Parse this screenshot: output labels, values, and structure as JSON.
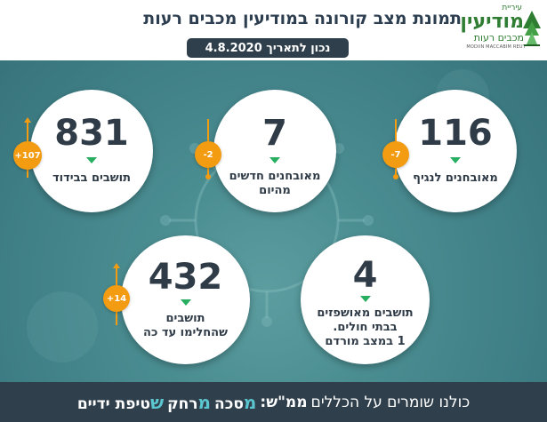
{
  "header": {
    "title": "תמונת מצב קורונה במודיעין מכבים רעות",
    "date": "נכון לתאריך 4.8.2020"
  },
  "logo": {
    "small": "עיריית",
    "main": "מודיעין",
    "sub": "מכבים רעות",
    "english": "MODIIN MACCABIM REUT"
  },
  "stats": {
    "isolation": {
      "value": "831",
      "label": "תושבים בבידוד",
      "change": "+107"
    },
    "new_cases": {
      "value": "7",
      "label_line1": "מאובחנים חדשים",
      "label_line2": "מהיום",
      "change": "-2"
    },
    "active": {
      "value": "116",
      "label": "מאובחנים לנגיף",
      "change": "-7"
    },
    "recovered": {
      "value": "432",
      "label_line1": "תושבים",
      "label_line2": "שהחלימו עד כה",
      "change": "+14"
    },
    "hospitalized": {
      "value": "4",
      "label_line1": "תושבים מאושפזים",
      "label_line2": "בבתי חולים.",
      "label_line3": "1 במצב מורדם"
    }
  },
  "footer": {
    "intro": "כולנו שומרים על הכללים",
    "acronym": "ממ\"ש:",
    "m1": "מ",
    "w1": "סכה",
    "m2": "מ",
    "w2": "רחק",
    "s": "ש",
    "w3": "טיפת ידיים"
  },
  "colors": {
    "accent_green": "#27ae60",
    "badge_orange": "#f39c12",
    "dark_navy": "#2f3f4c",
    "footer_highlight": "#5cc6d0"
  }
}
